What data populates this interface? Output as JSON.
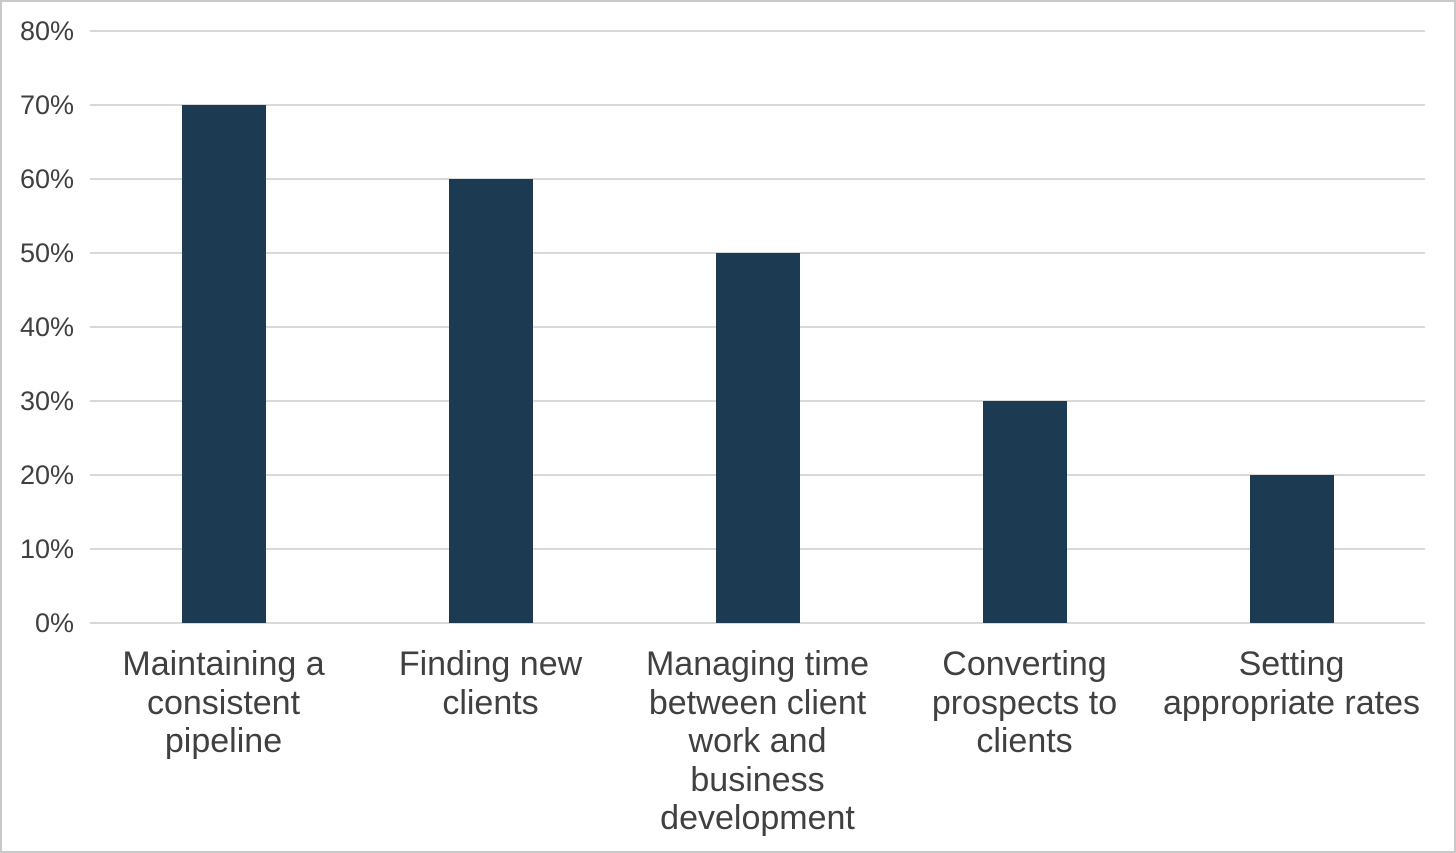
{
  "chart_data": {
    "type": "bar",
    "title": "",
    "xlabel": "",
    "ylabel": "",
    "categories": [
      "Maintaining a consistent pipeline",
      "Finding new clients",
      "Managing time between client work and business development",
      "Converting prospects to clients",
      "Setting appropriate rates"
    ],
    "values": [
      70,
      60,
      50,
      30,
      20
    ],
    "value_unit": "%",
    "ylim": [
      0,
      80
    ],
    "ytick_step": 10,
    "ytick_labels": [
      "0%",
      "10%",
      "20%",
      "30%",
      "40%",
      "50%",
      "60%",
      "70%",
      "80%"
    ],
    "grid": true,
    "legend_position": "none",
    "colors": {
      "bar": "#1c3a52",
      "gridline": "#d9d9d9",
      "axis_text": "#404040",
      "background": "#ffffff",
      "frame_border": "#c9c9c9"
    }
  }
}
